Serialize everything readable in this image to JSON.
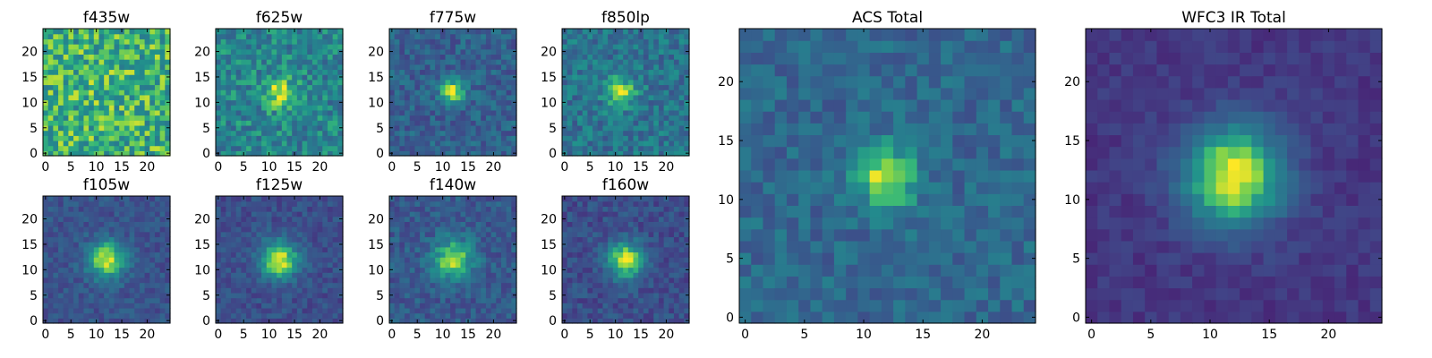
{
  "chart_data": {
    "type": "heatmap",
    "colormap": "viridis",
    "grid_size": 25,
    "axis_range": [
      0,
      24
    ],
    "grid": false,
    "panels": [
      {
        "title": "f435w",
        "xticks": [
          "0",
          "5",
          "10",
          "15",
          "20"
        ],
        "yticks": [
          "0",
          "5",
          "10",
          "15",
          "20"
        ],
        "source": {
          "center": [
            12,
            12
          ],
          "peak": 0.05,
          "width": 3.0,
          "background": 0.72,
          "noise": 0.22
        }
      },
      {
        "title": "f625w",
        "xticks": [
          "0",
          "5",
          "10",
          "15",
          "20"
        ],
        "yticks": [
          "0",
          "5",
          "10",
          "15",
          "20"
        ],
        "source": {
          "center": [
            12,
            12
          ],
          "peak": 0.35,
          "width": 2.2,
          "background": 0.55,
          "noise": 0.18
        }
      },
      {
        "title": "f775w",
        "xticks": [
          "0",
          "5",
          "10",
          "15",
          "20"
        ],
        "yticks": [
          "0",
          "5",
          "10",
          "15",
          "20"
        ],
        "source": {
          "center": [
            12,
            12
          ],
          "peak": 0.6,
          "width": 1.6,
          "background": 0.38,
          "noise": 0.14
        }
      },
      {
        "title": "f850lp",
        "xticks": [
          "0",
          "5",
          "10",
          "15",
          "20"
        ],
        "yticks": [
          "0",
          "5",
          "10",
          "15",
          "20"
        ],
        "source": {
          "center": [
            11,
            12
          ],
          "peak": 0.45,
          "width": 2.0,
          "background": 0.48,
          "noise": 0.16
        }
      },
      {
        "title": "f105w",
        "xticks": [
          "0",
          "5",
          "10",
          "15",
          "20"
        ],
        "yticks": [
          "0",
          "5",
          "10",
          "15",
          "20"
        ],
        "source": {
          "center": [
            12,
            12
          ],
          "peak": 0.65,
          "width": 2.6,
          "background": 0.32,
          "noise": 0.1
        }
      },
      {
        "title": "f125w",
        "xticks": [
          "0",
          "5",
          "10",
          "15",
          "20"
        ],
        "yticks": [
          "0",
          "5",
          "10",
          "15",
          "20"
        ],
        "source": {
          "center": [
            12,
            12
          ],
          "peak": 0.68,
          "width": 2.6,
          "background": 0.3,
          "noise": 0.1
        }
      },
      {
        "title": "f140w",
        "xticks": [
          "0",
          "5",
          "10",
          "15",
          "20"
        ],
        "yticks": [
          "0",
          "5",
          "10",
          "15",
          "20"
        ],
        "source": {
          "center": [
            12,
            12
          ],
          "peak": 0.55,
          "width": 2.8,
          "background": 0.35,
          "noise": 0.12
        }
      },
      {
        "title": "f160w",
        "xticks": [
          "0",
          "5",
          "10",
          "15",
          "20"
        ],
        "yticks": [
          "0",
          "5",
          "10",
          "15",
          "20"
        ],
        "source": {
          "center": [
            12,
            12
          ],
          "peak": 0.66,
          "width": 2.5,
          "background": 0.3,
          "noise": 0.11
        }
      },
      {
        "title": "ACS Total",
        "xticks": [
          "0",
          "5",
          "10",
          "15",
          "20"
        ],
        "yticks": [
          "0",
          "5",
          "10",
          "15",
          "20"
        ],
        "source": {
          "center": [
            12,
            12
          ],
          "peak": 0.55,
          "width": 1.8,
          "background": 0.42,
          "noise": 0.12
        }
      },
      {
        "title": "WFC3 IR Total",
        "xticks": [
          "0",
          "5",
          "10",
          "15",
          "20"
        ],
        "yticks": [
          "0",
          "5",
          "10",
          "15",
          "20"
        ],
        "source": {
          "center": [
            12,
            12
          ],
          "peak": 0.8,
          "width": 3.0,
          "background": 0.2,
          "noise": 0.06
        }
      }
    ]
  }
}
